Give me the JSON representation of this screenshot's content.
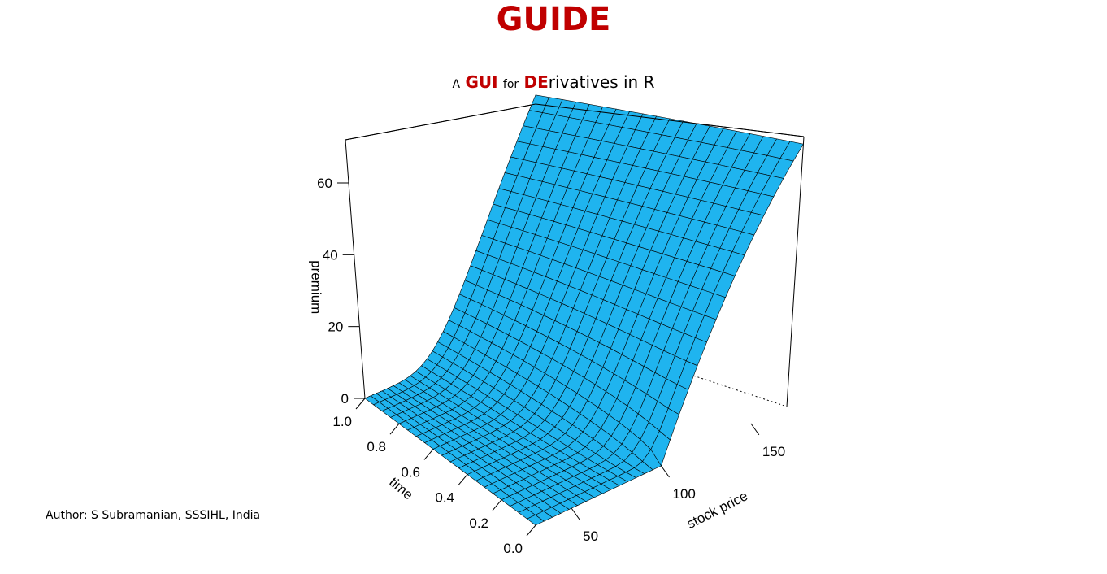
{
  "header": {
    "title": "GUIDE",
    "subtitle_a": "A",
    "subtitle_gui": "GUI",
    "subtitle_for": "for",
    "subtitle_de": "DE",
    "subtitle_rest": "rivatives in R"
  },
  "footer": {
    "author": "Author: S Subramanian, SSSIHL, India"
  },
  "chart_data": {
    "type": "surface",
    "description_type": "3d perspective surface of option premium",
    "xlabel": "stock price",
    "ylabel": "time",
    "zlabel": "premium",
    "x_ticks": [
      50,
      100,
      150
    ],
    "y_ticks": [
      0.0,
      0.2,
      0.4,
      0.6,
      0.8,
      1.0
    ],
    "y_tick_labels": [
      "0.0",
      "0.2",
      "0.4",
      "0.6",
      "0.8",
      "1.0"
    ],
    "z_ticks": [
      0,
      20,
      40,
      60
    ],
    "xlim": [
      30,
      170
    ],
    "ylim": [
      0.0,
      1.0
    ],
    "zlim": [
      0,
      72
    ],
    "strike": 100,
    "grid_x": 30,
    "grid_y": 20,
    "surface_color": "#1fb4ef",
    "mesh_color": "#000000"
  }
}
